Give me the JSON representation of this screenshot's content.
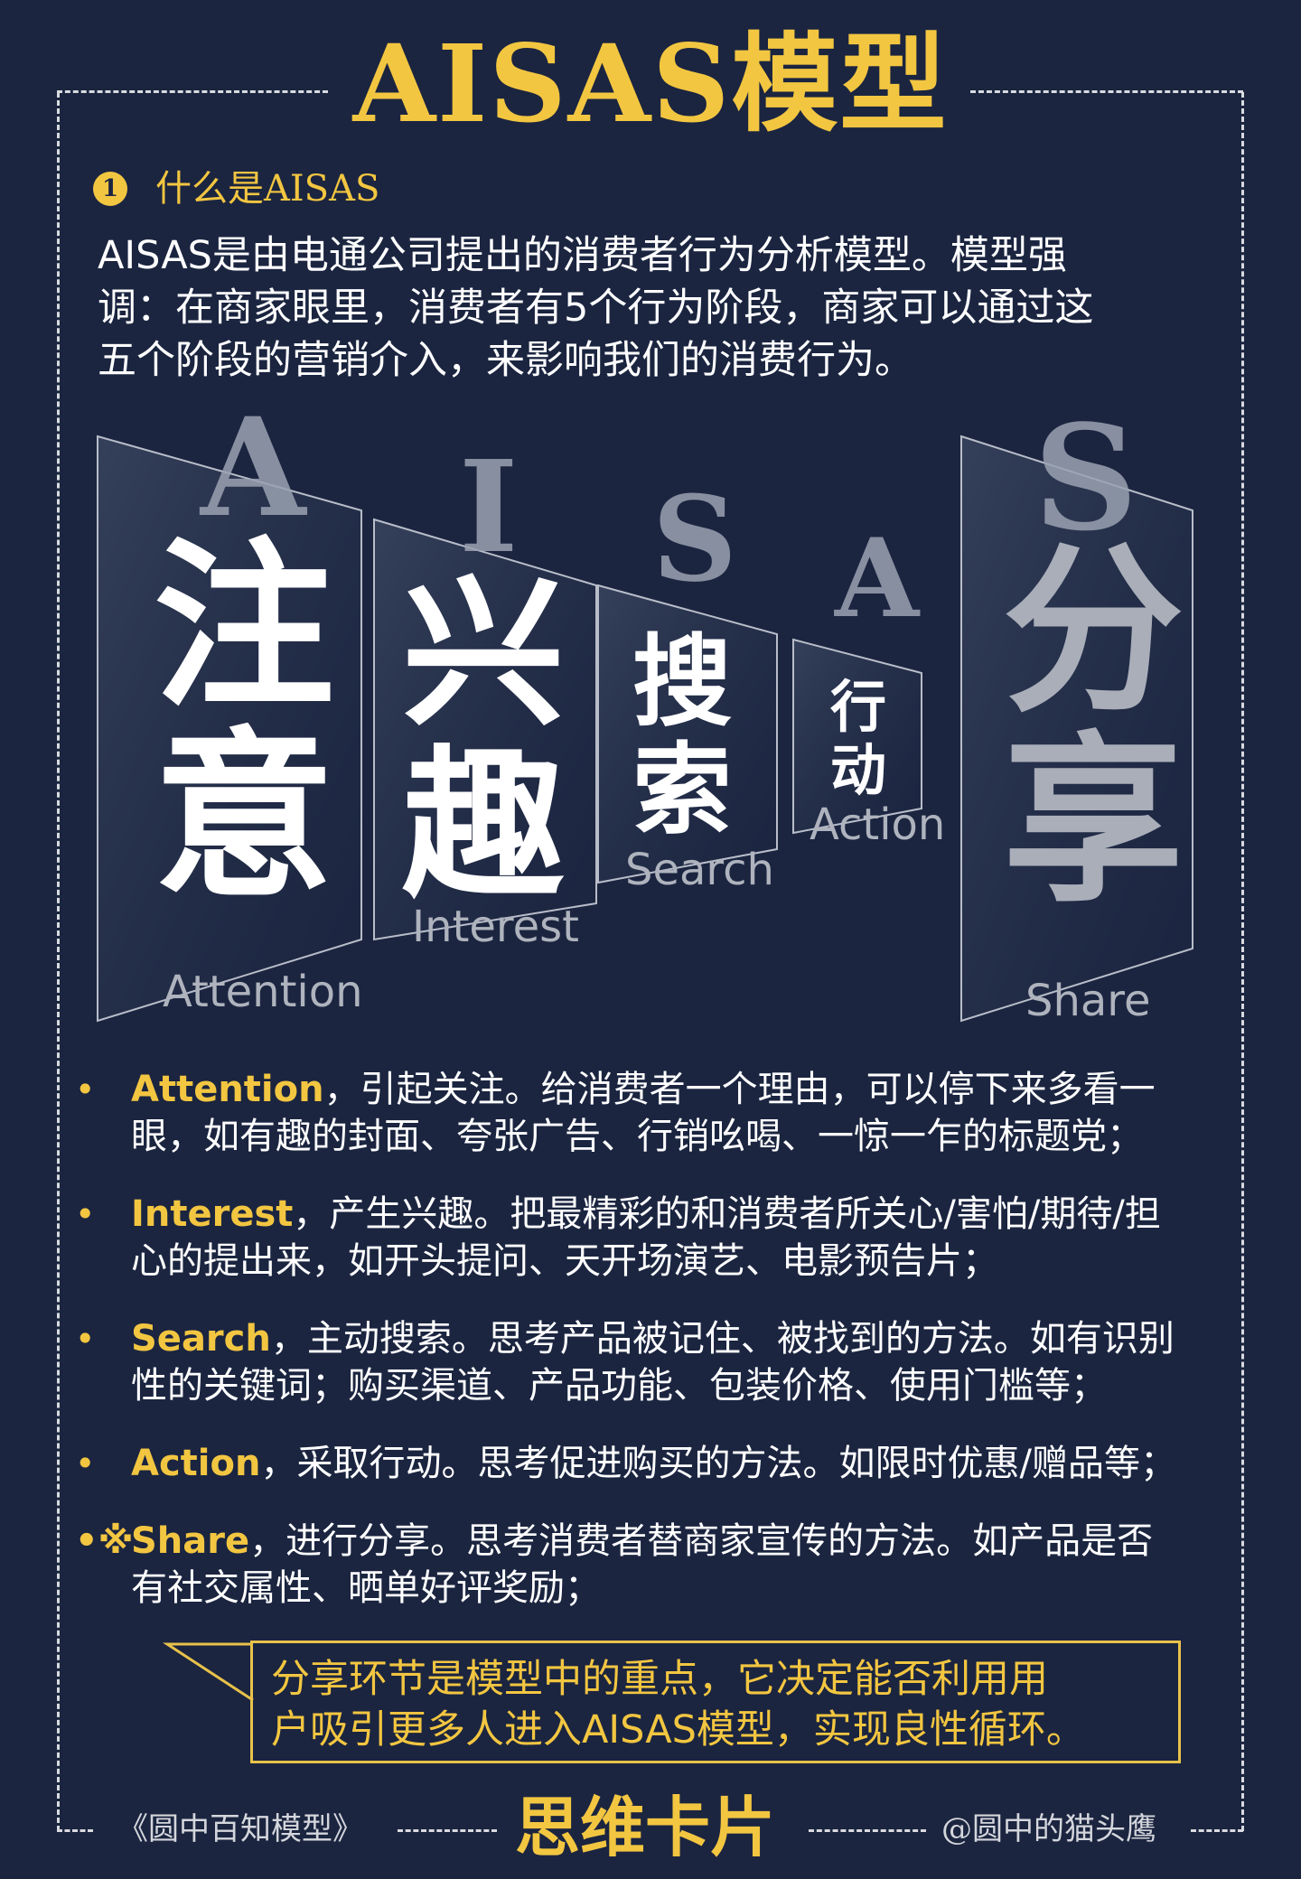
{
  "header": {
    "title": "AISAS模型"
  },
  "section1": {
    "number": "1",
    "title": "什么是AISAS",
    "intro_line1": "AISAS是由电通公司提出的消费者行为分析模型。模型强",
    "intro_line2": "调：在商家眼里，消费者有5个行为阶段，商家可以通过这",
    "intro_line3": "五个阶段的营销介入，来影响我们的消费行为。"
  },
  "diagram": {
    "stages": [
      {
        "letter": "A",
        "cn_line1": "注",
        "cn_line2": "意",
        "en": "Attention"
      },
      {
        "letter": "I",
        "cn_line1": "兴",
        "cn_line2": "趣",
        "en": "Interest"
      },
      {
        "letter": "S",
        "cn_line1": "搜",
        "cn_line2": "索",
        "en": "Search"
      },
      {
        "letter": "A",
        "cn_line1": "行",
        "cn_line2": "动",
        "en": "Action"
      },
      {
        "letter": "S",
        "cn_line1": "分",
        "cn_line2": "享",
        "en": "Share"
      }
    ]
  },
  "bullets": [
    {
      "marker": "•",
      "keyword": "Attention",
      "line1": "，引起关注。给消费者一个理由，可以停下来多看一",
      "line2": "眼，如有趣的封面、夸张广告、行销吆喝、一惊一乍的标题党；"
    },
    {
      "marker": "•",
      "keyword": "Interest",
      "line1": "，产生兴趣。把最精彩的和消费者所关心/害怕/期待/担",
      "line2": "心的提出来，如开头提问、天开场演艺、电影预告片；"
    },
    {
      "marker": "•",
      "keyword": "Search",
      "line1": "，主动搜索。思考产品被记住、被找到的方法。如有识别",
      "line2": "性的关键词；购买渠道、产品功能、包装价格、使用门槛等；"
    },
    {
      "marker": "•",
      "keyword": "Action",
      "line1": "，采取行动。思考促进购买的方法。如限时优惠/赠品等；",
      "line2": ""
    },
    {
      "marker": "•※",
      "keyword": "Share",
      "line1": "，进行分享。思考消费者替商家宣传的方法。如产品是否",
      "line2": "有社交属性、晒单好评奖励；"
    }
  ],
  "callout": {
    "line1": "分享环节是模型中的重点，它决定能否利用用",
    "line2": "户吸引更多人进入AISAS模型，实现良性循环。"
  },
  "footer": {
    "left": "《圆中百知模型》",
    "center": "思维卡片",
    "right": "@圆中的猫头鹰"
  },
  "colors": {
    "background": "#1b2540",
    "accent": "#f3c641",
    "text": "#ffffff"
  }
}
